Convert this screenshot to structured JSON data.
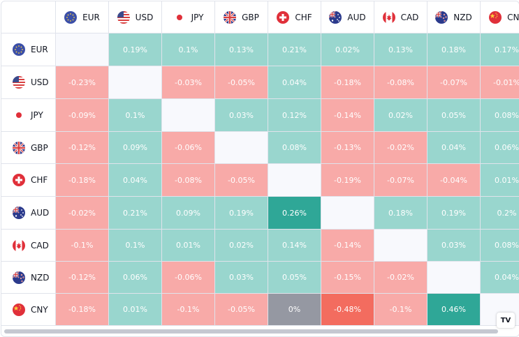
{
  "currencies": [
    {
      "code": "EUR",
      "flag": "eu-flag-icon"
    },
    {
      "code": "USD",
      "flag": "us-flag-icon"
    },
    {
      "code": "JPY",
      "flag": "jp-flag-icon"
    },
    {
      "code": "GBP",
      "flag": "gb-flag-icon"
    },
    {
      "code": "CHF",
      "flag": "ch-flag-icon"
    },
    {
      "code": "AUD",
      "flag": "au-flag-icon"
    },
    {
      "code": "CAD",
      "flag": "ca-flag-icon"
    },
    {
      "code": "NZD",
      "flag": "nz-flag-icon"
    },
    {
      "code": "CNY",
      "flag": "cn-flag-icon"
    }
  ],
  "matrix": [
    [
      null,
      "0.19%",
      "0.1%",
      "0.13%",
      "0.21%",
      "0.02%",
      "0.13%",
      "0.18%",
      "0.17%"
    ],
    [
      "-0.23%",
      null,
      "-0.03%",
      "-0.05%",
      "0.04%",
      "-0.18%",
      "-0.08%",
      "-0.07%",
      "-0.01%"
    ],
    [
      "-0.09%",
      "0.1%",
      null,
      "0.03%",
      "0.12%",
      "-0.14%",
      "0.02%",
      "0.05%",
      "0.08%"
    ],
    [
      "-0.12%",
      "0.09%",
      "-0.06%",
      null,
      "0.08%",
      "-0.13%",
      "-0.02%",
      "0.04%",
      "0.06%"
    ],
    [
      "-0.18%",
      "0.04%",
      "-0.08%",
      "-0.05%",
      null,
      "-0.19%",
      "-0.07%",
      "-0.04%",
      "0.01%"
    ],
    [
      "-0.02%",
      "0.21%",
      "0.09%",
      "0.19%",
      "0.26%",
      null,
      "0.18%",
      "0.19%",
      "0.2%"
    ],
    [
      "-0.1%",
      "0.1%",
      "0.01%",
      "0.02%",
      "0.14%",
      "-0.14%",
      null,
      "0.03%",
      "0.08%"
    ],
    [
      "-0.12%",
      "0.06%",
      "-0.06%",
      "0.03%",
      "0.05%",
      "-0.15%",
      "-0.02%",
      null,
      "0.04%"
    ],
    [
      "-0.18%",
      "0.01%",
      "-0.1%",
      "-0.05%",
      "0%",
      "-0.48%",
      "-0.1%",
      "0.46%",
      null
    ]
  ],
  "colors": {
    "positive": "#99d6ce",
    "negative": "#f8aaa8",
    "strong_positive": "#2fa797",
    "strong_negative": "#f36c5f",
    "neutral": "#9598a2",
    "diagonal": "#f8f9fd"
  },
  "branding": {
    "logo_text": "TV"
  }
}
